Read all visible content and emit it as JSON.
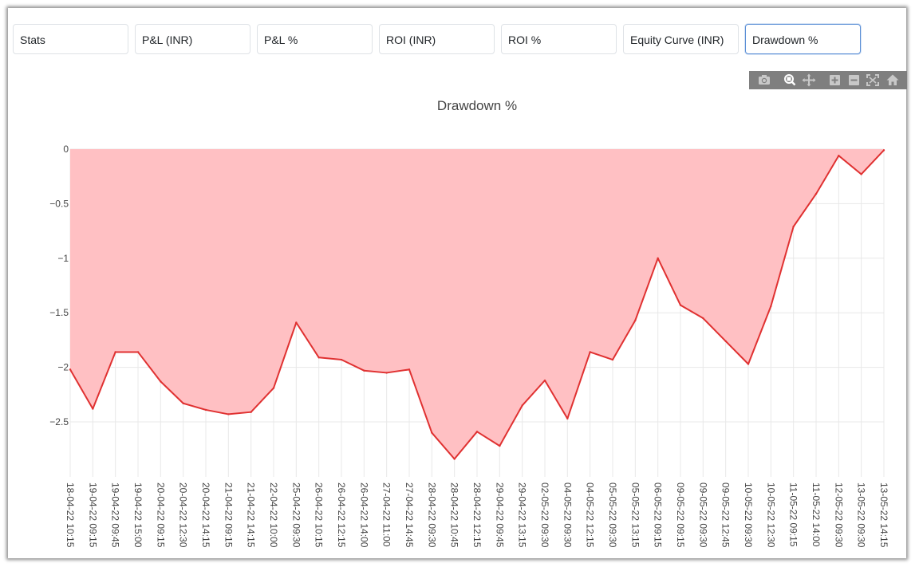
{
  "tabs": [
    {
      "label": "Stats"
    },
    {
      "label": "P&L (INR)"
    },
    {
      "label": "P&L %"
    },
    {
      "label": "ROI (INR)"
    },
    {
      "label": "ROI %"
    },
    {
      "label": "Equity Curve (INR)"
    },
    {
      "label": "Drawdown %"
    }
  ],
  "active_tab": "Drawdown %",
  "modebar": {
    "icons": [
      "camera-icon",
      "zoom-icon",
      "pan-icon",
      "zoom-in-icon",
      "zoom-out-icon",
      "autoscale-icon",
      "home-icon"
    ]
  },
  "colors": {
    "line": "#e03131",
    "fill": "#ffc0c3",
    "grid": "#e8e8e8",
    "modebar_bg": "#7f7f7f",
    "active_tab_border": "#5b8fd6"
  },
  "chart_data": {
    "type": "area",
    "title": "Drawdown %",
    "xlabel": "",
    "ylabel": "",
    "ylim": [
      -3.0,
      0
    ],
    "yticks": [
      0,
      -0.5,
      -1,
      -1.5,
      -2,
      -2.5
    ],
    "ytick_labels": [
      "0",
      "−0.5",
      "−1",
      "−1.5",
      "−2",
      "−2.5"
    ],
    "grid": true,
    "legend": "none",
    "x": [
      "18-04-22 10:15",
      "19-04-22 09:15",
      "19-04-22 09:45",
      "19-04-22 15:00",
      "20-04-22 09:15",
      "20-04-22 12:30",
      "20-04-22 14:15",
      "21-04-22 09:15",
      "21-04-22 14:15",
      "22-04-22 10:00",
      "25-04-22 09:30",
      "26-04-22 10:15",
      "26-04-22 12:15",
      "26-04-22 14:00",
      "27-04-22 11:00",
      "27-04-22 14:45",
      "28-04-22 09:30",
      "28-04-22 10:45",
      "28-04-22 12:15",
      "29-04-22 09:45",
      "29-04-22 13:15",
      "02-05-22 09:30",
      "04-05-22 09:30",
      "04-05-22 12:15",
      "05-05-22 09:30",
      "05-05-22 13:15",
      "06-05-22 09:15",
      "09-05-22 09:15",
      "09-05-22 09:30",
      "09-05-22 12:45",
      "10-05-22 09:30",
      "10-05-22 12:30",
      "11-05-22 09:15",
      "11-05-22 14:00",
      "12-05-22 09:30",
      "13-05-22 09:30",
      "13-05-22 14:15"
    ],
    "series": [
      {
        "values": [
          -2.02,
          -2.38,
          -1.86,
          -1.86,
          -2.13,
          -2.33,
          -2.39,
          -2.43,
          -2.41,
          -2.19,
          -1.59,
          -1.91,
          -1.93,
          -2.03,
          -2.05,
          -2.02,
          -2.6,
          -2.84,
          -2.59,
          -2.72,
          -2.35,
          -2.12,
          -2.47,
          -1.86,
          -1.93,
          -1.57,
          -1.0,
          -1.43,
          -1.55,
          -1.76,
          -1.97,
          -1.44,
          -0.71,
          -0.41,
          -0.06,
          -0.23,
          -0.01
        ]
      }
    ]
  }
}
